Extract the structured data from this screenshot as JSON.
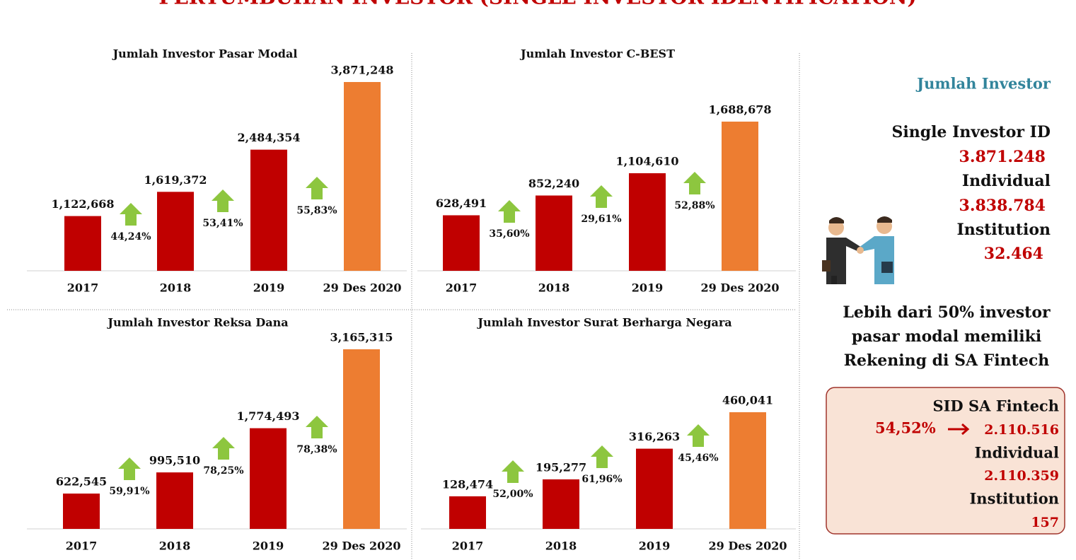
{
  "title": "PERTUMBUHAN INVESTOR (SINGLE INVESTOR IDENTIFICATION)",
  "chart_data": [
    {
      "type": "bar",
      "title": "Jumlah Investor Pasar Modal",
      "categories": [
        "2017",
        "2018",
        "2019",
        "29 Des 2020"
      ],
      "values": [
        1122668,
        1619372,
        2484354,
        3871248
      ],
      "value_labels": [
        "1,122,668",
        "1,619,372",
        "2,484,354",
        "3,871,248"
      ],
      "colors": [
        "#c00000",
        "#c00000",
        "#c00000",
        "#ed7d31"
      ],
      "annotations": [
        "44,24%",
        "53,41%",
        "55,83%"
      ]
    },
    {
      "type": "bar",
      "title": "Jumlah Investor C-BEST",
      "categories": [
        "2017",
        "2018",
        "2019",
        "29 Des 2020"
      ],
      "values": [
        628491,
        852240,
        1104610,
        1688678
      ],
      "value_labels": [
        "628,491",
        "852,240",
        "1,104,610",
        "1,688,678"
      ],
      "colors": [
        "#c00000",
        "#c00000",
        "#c00000",
        "#ed7d31"
      ],
      "annotations": [
        "35,60%",
        "29,61%",
        "52,88%"
      ]
    },
    {
      "type": "bar",
      "title": "Jumlah Investor Reksa Dana",
      "categories": [
        "2017",
        "2018",
        "2019",
        "29 Des 2020"
      ],
      "values": [
        622545,
        995510,
        1774493,
        3165315
      ],
      "value_labels": [
        "622,545",
        "995,510",
        "1,774,493",
        "3,165,315"
      ],
      "colors": [
        "#c00000",
        "#c00000",
        "#c00000",
        "#ed7d31"
      ],
      "annotations": [
        "59,91%",
        "78,25%",
        "78,38%"
      ]
    },
    {
      "type": "bar",
      "title": "Jumlah Investor Surat Berharga Negara",
      "categories": [
        "2017",
        "2018",
        "2019",
        "29 Des 2020"
      ],
      "values": [
        128474,
        195277,
        316263,
        460041
      ],
      "value_labels": [
        "128,474",
        "195,277",
        "316,263",
        "460,041"
      ],
      "colors": [
        "#c00000",
        "#c00000",
        "#c00000",
        "#ed7d31"
      ],
      "annotations": [
        "52,00%",
        "61,96%",
        "45,46%"
      ]
    }
  ],
  "panel": {
    "heading": "Jumlah Investor",
    "items": [
      {
        "label": "Single Investor ID",
        "value": "3.871.248"
      },
      {
        "label": "Individual",
        "value": "3.838.784"
      },
      {
        "label": "Institution",
        "value": "32.464"
      }
    ],
    "note": [
      "Lebih dari 50% investor",
      "pasar modal memiliki",
      "Rekening di SA Fintech"
    ],
    "fintech": {
      "label": "SID SA Fintech",
      "percent": "54,52%",
      "value": "2.110.516",
      "items": [
        {
          "label": "Individual",
          "value": "2.110.359"
        },
        {
          "label": "Institution",
          "value": "157"
        }
      ]
    }
  }
}
